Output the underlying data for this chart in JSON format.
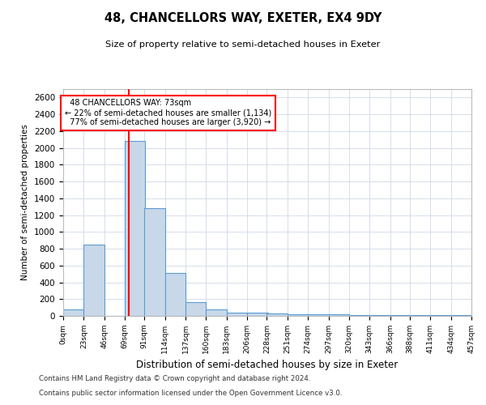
{
  "title": "48, CHANCELLORS WAY, EXETER, EX4 9DY",
  "subtitle": "Size of property relative to semi-detached houses in Exeter",
  "xlabel": "Distribution of semi-detached houses by size in Exeter",
  "ylabel": "Number of semi-detached properties",
  "property_size": 73,
  "property_label": "48 CHANCELLORS WAY: 73sqm",
  "pct_smaller": 22,
  "count_smaller": 1134,
  "pct_larger": 77,
  "count_larger": 3920,
  "bin_edges": [
    0,
    23,
    46,
    69,
    91,
    114,
    137,
    160,
    183,
    206,
    228,
    251,
    274,
    297,
    320,
    343,
    366,
    388,
    411,
    434,
    457
  ],
  "bar_heights": [
    75,
    850,
    0,
    2080,
    1280,
    510,
    165,
    80,
    40,
    35,
    25,
    20,
    20,
    20,
    5,
    5,
    5,
    5,
    5,
    5
  ],
  "bar_color": "#c8d8e8",
  "bar_edge_color": "#5b9bd5",
  "grid_color": "#d0d8e8",
  "vline_color": "red",
  "annotation_box_color": "red",
  "annotation_text_color": "black",
  "bg_color": "white",
  "footer1": "Contains HM Land Registry data © Crown copyright and database right 2024.",
  "footer2": "Contains public sector information licensed under the Open Government Licence v3.0.",
  "ylim": [
    0,
    2700
  ],
  "yticks": [
    0,
    200,
    400,
    600,
    800,
    1000,
    1200,
    1400,
    1600,
    1800,
    2000,
    2200,
    2400,
    2600
  ]
}
